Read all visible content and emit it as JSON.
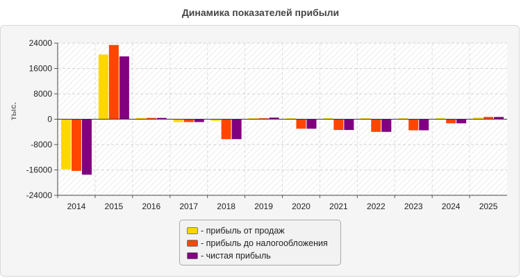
{
  "chart_data": {
    "type": "bar",
    "title": "Динамика показателей прибыли",
    "ylabel": "тыс.",
    "xlabel": "",
    "categories": [
      "2014",
      "2015",
      "2016",
      "2017",
      "2018",
      "2019",
      "2020",
      "2021",
      "2022",
      "2023",
      "2024",
      "2025"
    ],
    "yticks": [
      "24000",
      "16000",
      "8000",
      "0",
      "-8000",
      "-16000",
      "-24000"
    ],
    "ylim": [
      -24000,
      24000
    ],
    "grid": true,
    "legend_position": "bottom",
    "series": [
      {
        "name": "- прибыль от продаж",
        "color": "#ffd700",
        "values": [
          -15800,
          20400,
          400,
          -900,
          -500,
          300,
          300,
          300,
          300,
          300,
          300,
          500
        ]
      },
      {
        "name": "- прибыль до налогообложения",
        "color": "#ff4500",
        "values": [
          -16300,
          23400,
          400,
          -900,
          -6300,
          300,
          -3000,
          -3400,
          -4000,
          -3500,
          -1300,
          700
        ]
      },
      {
        "name": "- чистая прибыль",
        "color": "#800080",
        "values": [
          -17500,
          19800,
          400,
          -900,
          -6300,
          500,
          -3000,
          -3400,
          -4000,
          -3500,
          -1300,
          700
        ]
      }
    ]
  }
}
